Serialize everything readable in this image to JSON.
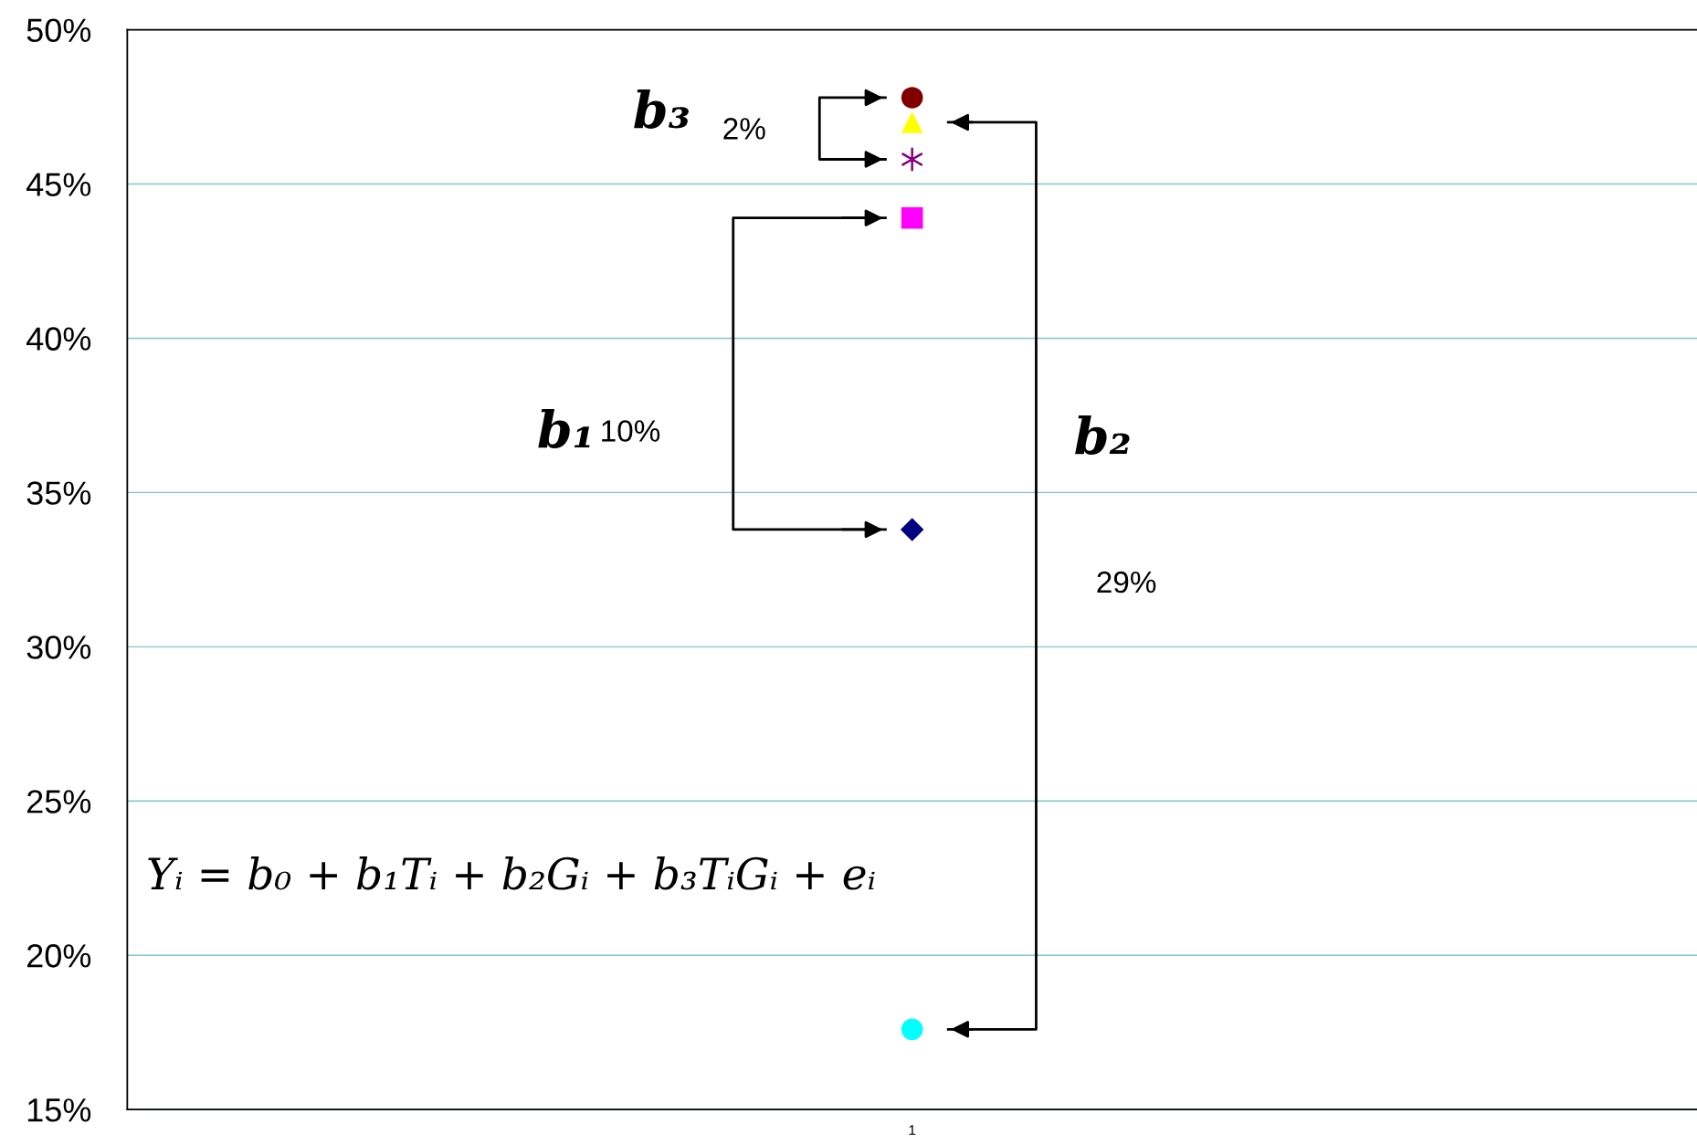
{
  "chart_data": {
    "type": "scatter",
    "categories": [
      "1"
    ],
    "series": [
      {
        "color": "#800000",
        "marker": "circle",
        "values": [
          47.8
        ]
      },
      {
        "color": "#ffff00",
        "marker": "triangle",
        "values": [
          47.0
        ]
      },
      {
        "color": "#800080",
        "marker": "cross",
        "values": [
          45.8
        ]
      },
      {
        "color": "#ff00ff",
        "marker": "square",
        "values": [
          43.9
        ]
      },
      {
        "color": "#000080",
        "marker": "diamond",
        "values": [
          33.8
        ]
      },
      {
        "color": "#00ffff",
        "marker": "circle",
        "values": [
          17.6
        ]
      }
    ],
    "ylim": [
      15,
      50
    ],
    "yticks": [
      {
        "value": 15,
        "label": "15%"
      },
      {
        "value": 20,
        "label": "20%"
      },
      {
        "value": 25,
        "label": "25%"
      },
      {
        "value": 30,
        "label": "30%"
      },
      {
        "value": 35,
        "label": "35%"
      },
      {
        "value": 40,
        "label": "40%"
      },
      {
        "value": 45,
        "label": "45%"
      },
      {
        "value": 50,
        "label": "50%"
      }
    ],
    "grid": "y",
    "annotations": [
      "b₃",
      "2%",
      "b₁",
      "10%",
      "b₂",
      "29%",
      "Yᵢ = b₀ + b₁Tᵢ + b₂Gᵢ + b₃TᵢGᵢ + eᵢ"
    ]
  }
}
